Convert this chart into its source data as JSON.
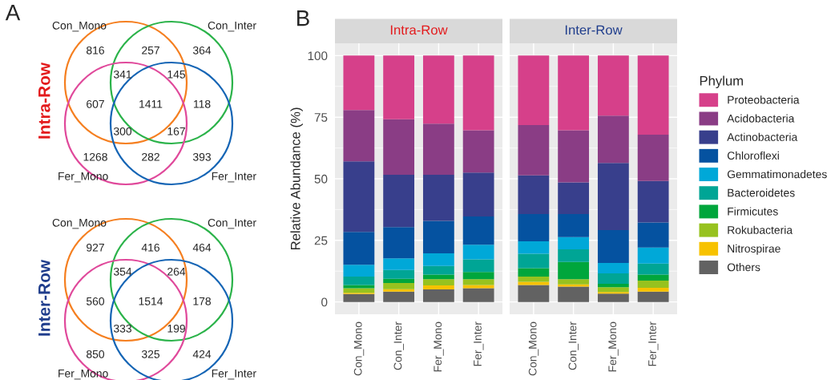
{
  "chart_data": [
    {
      "type": "other",
      "title": "Intra-Row",
      "categories": [
        "Con_Mono",
        "Con_Inter",
        "Fer_Mono",
        "Fer_Inter"
      ],
      "colors": [
        "#f57f20",
        "#2bb34a",
        "#e0499b",
        "#1565b5"
      ],
      "annotations": [
        "A",
        "816",
        "257",
        "364",
        "341",
        "145",
        "607",
        "1411",
        "118",
        "300",
        "167",
        "1268",
        "282",
        "393"
      ]
    },
    {
      "type": "other",
      "title": "Inter-Row",
      "categories": [
        "Con_Mono",
        "Con_Inter",
        "Fer_Mono",
        "Fer_Inter"
      ],
      "colors": [
        "#f57f20",
        "#2bb34a",
        "#e0499b",
        "#1565b5"
      ],
      "annotations": [
        "927",
        "416",
        "464",
        "354",
        "264",
        "560",
        "1514",
        "178",
        "333",
        "199",
        "850",
        "325",
        "424"
      ]
    },
    {
      "type": "bar",
      "stacked": true,
      "title": "Intra-Row",
      "ylabel": "Relative Abundance (%)",
      "annotations": [
        "B"
      ],
      "legend_title": "Phylum",
      "legend": "right",
      "grid": true,
      "ylim": [
        -5,
        105
      ],
      "yticks": [
        0,
        25,
        50,
        75,
        100
      ],
      "categories": [
        "Con_Mono",
        "Con_Inter",
        "Fer_Mono",
        "Fer_Inter"
      ],
      "series": [
        {
          "name": "Others",
          "color": "#626262",
          "values": [
            3.2,
            4.2,
            5.1,
            5.6
          ]
        },
        {
          "name": "Nitrospirae",
          "color": "#f7c200",
          "values": [
            0.5,
            1.0,
            1.6,
            1.3
          ]
        },
        {
          "name": "Rokubacteria",
          "color": "#97c21f",
          "values": [
            1.9,
            2.5,
            2.5,
            2.3
          ]
        },
        {
          "name": "Firmicutes",
          "color": "#00a63c",
          "values": [
            1.3,
            1.7,
            1.9,
            3.0
          ]
        },
        {
          "name": "Bacteroidetes",
          "color": "#00a595",
          "values": [
            3.4,
            3.6,
            3.5,
            5.1
          ]
        },
        {
          "name": "Gemmatimonadetes",
          "color": "#00a8d8",
          "values": [
            4.8,
            4.7,
            5.1,
            5.9
          ]
        },
        {
          "name": "Chloroflexi",
          "color": "#0552a0",
          "values": [
            13.3,
            12.7,
            13.2,
            11.5
          ]
        },
        {
          "name": "Actinobacteria",
          "color": "#383f8c",
          "values": [
            28.7,
            21.2,
            18.7,
            17.8
          ]
        },
        {
          "name": "Acidobacteria",
          "color": "#8a3d85",
          "values": [
            20.8,
            22.6,
            20.8,
            17.2
          ]
        },
        {
          "name": "Proteobacteria",
          "color": "#d6408a",
          "values": [
            22.1,
            25.8,
            27.6,
            30.3
          ]
        }
      ]
    },
    {
      "type": "bar",
      "stacked": true,
      "title": "Inter-Row",
      "grid": true,
      "tick_labels": "x",
      "ylim": [
        -5,
        105
      ],
      "yticks": [
        0,
        25,
        50,
        75,
        100
      ],
      "categories": [
        "Con_Mono",
        "Con_Inter",
        "Fer_Mono",
        "Fer_Inter"
      ],
      "series": [
        {
          "name": "Others",
          "color": "#626262",
          "values": [
            6.9,
            6.2,
            3.4,
            4.2
          ]
        },
        {
          "name": "Nitrospirae",
          "color": "#f7c200",
          "values": [
            1.3,
            0.9,
            0.6,
            1.5
          ]
        },
        {
          "name": "Rokubacteria",
          "color": "#97c21f",
          "values": [
            2.1,
            2.1,
            2.0,
            3.0
          ]
        },
        {
          "name": "Firmicutes",
          "color": "#00a63c",
          "values": [
            3.4,
            7.0,
            1.4,
            2.4
          ]
        },
        {
          "name": "Bacteroidetes",
          "color": "#00a595",
          "values": [
            5.9,
            5.2,
            4.2,
            4.5
          ]
        },
        {
          "name": "Gemmatimonadetes",
          "color": "#00a8d8",
          "values": [
            5.0,
            4.9,
            4.2,
            6.5
          ]
        },
        {
          "name": "Chloroflexi",
          "color": "#0552a0",
          "values": [
            11.1,
            9.4,
            13.4,
            10.2
          ]
        },
        {
          "name": "Actinobacteria",
          "color": "#383f8c",
          "values": [
            15.7,
            12.8,
            27.2,
            16.8
          ]
        },
        {
          "name": "Acidobacteria",
          "color": "#8a3d85",
          "values": [
            20.4,
            21.2,
            19.2,
            18.8
          ]
        },
        {
          "name": "Proteobacteria",
          "color": "#d6408a",
          "values": [
            28.2,
            30.3,
            24.4,
            32.1
          ]
        }
      ]
    }
  ]
}
